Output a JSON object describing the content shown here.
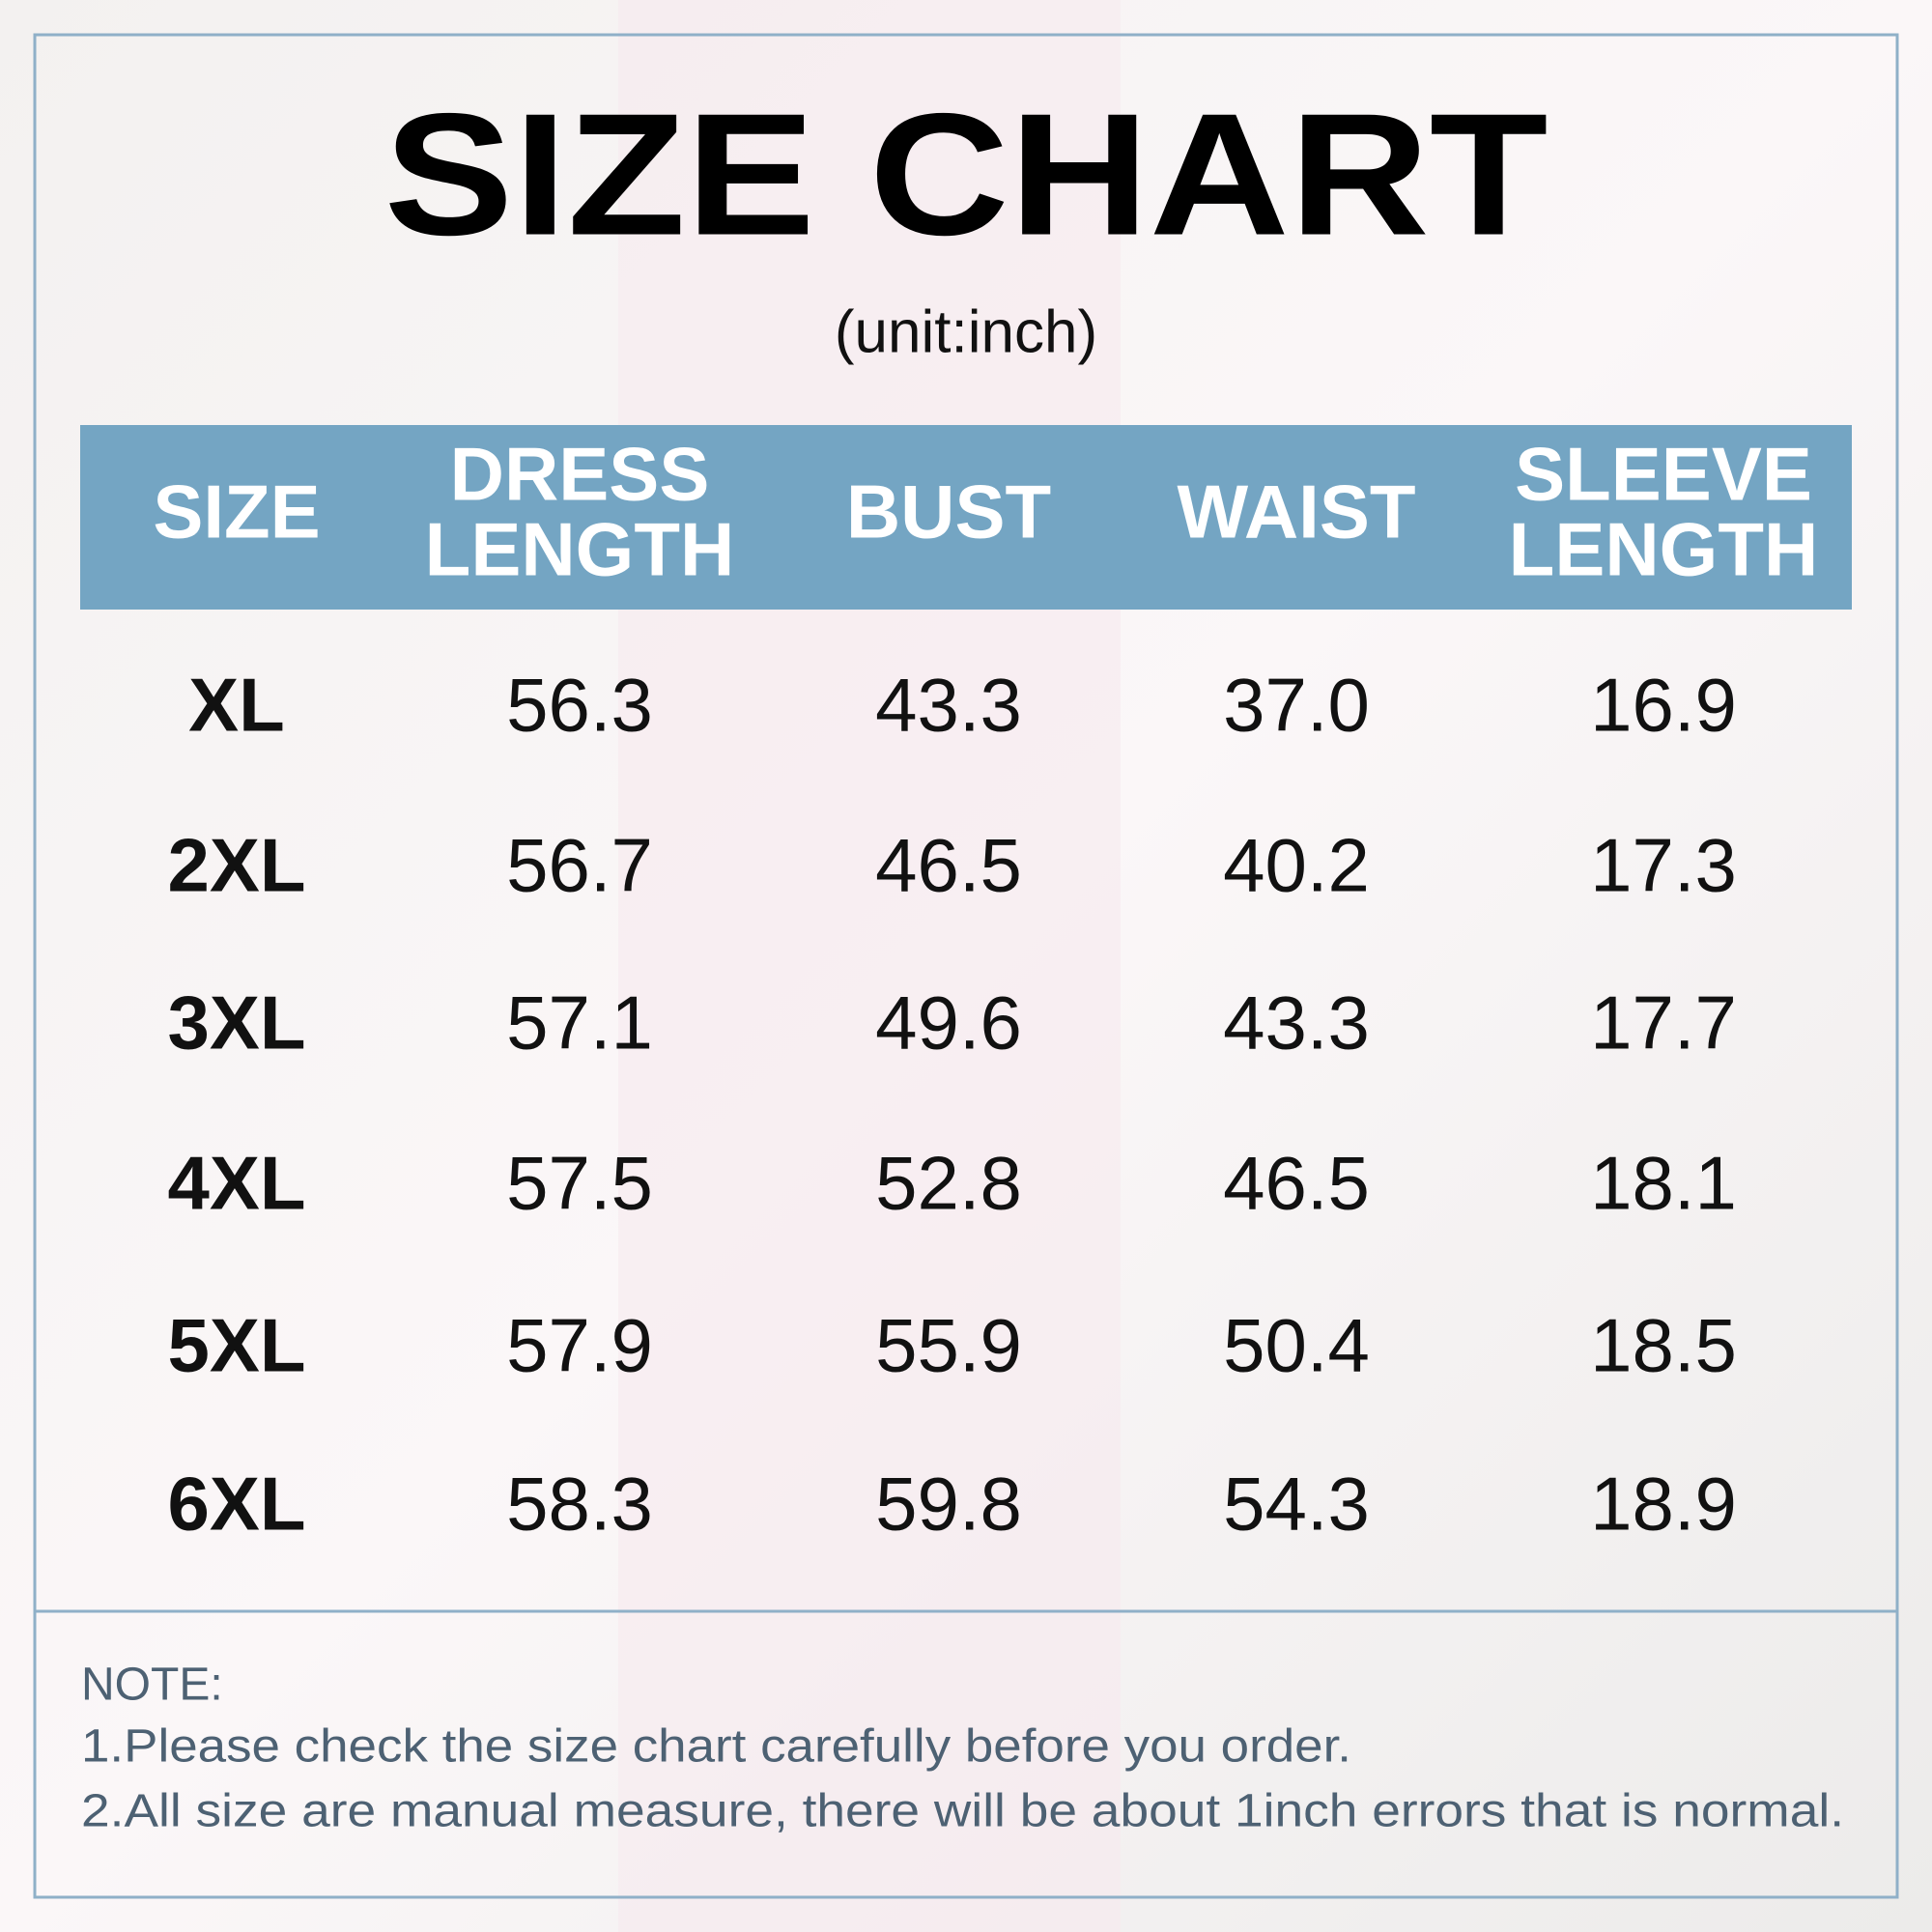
{
  "header": {
    "title": "SIZE CHART",
    "subtitle": "(unit:inch)"
  },
  "table": {
    "columns": [
      [
        "SIZE"
      ],
      [
        "DRESS",
        "LENGTH"
      ],
      [
        "BUST"
      ],
      [
        "WAIST"
      ],
      [
        "SLEEVE",
        "LENGTH"
      ]
    ],
    "rows": [
      [
        "XL",
        "56.3",
        "43.3",
        "37.0",
        "16.9"
      ],
      [
        "2XL",
        "56.7",
        "46.5",
        "40.2",
        "17.3"
      ],
      [
        "3XL",
        "57.1",
        "49.6",
        "43.3",
        "17.7"
      ],
      [
        "4XL",
        "57.5",
        "52.8",
        "46.5",
        "18.1"
      ],
      [
        "5XL",
        "57.9",
        "55.9",
        "50.4",
        "18.5"
      ],
      [
        "6XL",
        "58.3",
        "59.8",
        "54.3",
        "18.9"
      ]
    ]
  },
  "notes": {
    "heading": "NOTE:",
    "lines": [
      "1.Please check the size chart carefully before you order.",
      "2.All size are manual measure, there will be about 1inch errors that is normal."
    ]
  }
}
